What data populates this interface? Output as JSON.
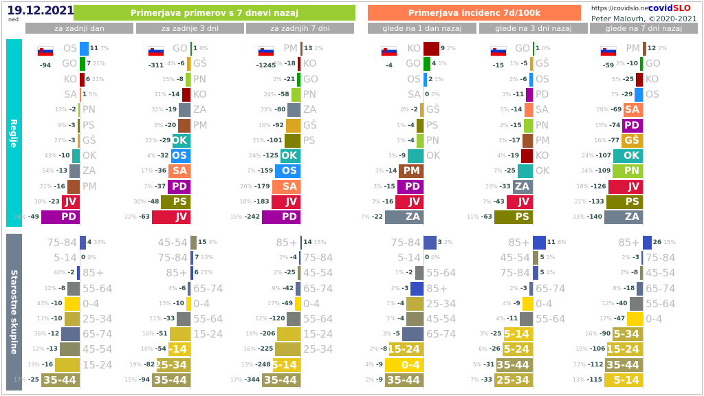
{
  "header": {
    "date": "19.12.2021",
    "weekday": "ned",
    "left_title": "Primerjava primerov s 7 dnevi nazaj",
    "right_title": "Primerjava incidenc 7d/100k",
    "left_subs": [
      "za zadnji dan",
      "za zadnje 3 dni",
      "za zadnjih 7 dni"
    ],
    "right_subs": [
      "glede na 1 dan nazaj",
      "glede na 3 dni nazaj",
      "glede na 7 dni nazaj"
    ],
    "url": "https://covidslo.net",
    "brand_a": "covid",
    "brand_b": "SLO",
    "author": "Peter Malovrh, ©2020-2021",
    "left_color": "#9acd32",
    "right_color": "#ff7f50"
  },
  "chart_data": [
    {
      "type": "bar",
      "title": "Regije",
      "orientation": "horizontal",
      "colors": {
        "OS": "#1e90ff",
        "GO": "#00a000",
        "KO": "#a00000",
        "SA": "#ff7f50",
        "PN": "#9acd32",
        "PS": "#808000",
        "GŠ": "#daa520",
        "OK": "#20b2aa",
        "ZA": "#708090",
        "PM": "#a0522d",
        "JV": "#dc143c",
        "PD": "#a000a0"
      },
      "section_color": "#00ced1",
      "panels": [
        {
          "total": "-94",
          "items": [
            [
              "OS",
              11,
              "7%"
            ],
            [
              "GO",
              7,
              "21%"
            ],
            [
              "KO",
              6,
              "21%"
            ],
            [
              "SA",
              1,
              "5%"
            ],
            [
              "PN",
              -2,
              "13%"
            ],
            [
              "PS",
              -3,
              "9%"
            ],
            [
              "GŠ",
              -3,
              "27%"
            ],
            [
              "OK",
              -10,
              "43%"
            ],
            [
              "ZA",
              -13,
              "54%"
            ],
            [
              "PM",
              -16,
              "22%"
            ],
            [
              "JV",
              -23,
              "38%"
            ],
            [
              "PD",
              -49,
              "26%"
            ]
          ]
        },
        {
          "total": "-311",
          "items": [
            [
              "GO",
              1,
              "0%"
            ],
            [
              "GŠ",
              -6,
              "4%"
            ],
            [
              "PN",
              -8,
              "15%"
            ],
            [
              "KO",
              -14,
              "11%"
            ],
            [
              "ZA",
              -19,
              "32%"
            ],
            [
              "PM",
              -20,
              "8%"
            ],
            [
              "OK",
              -29,
              "22%"
            ],
            [
              "OS",
              -32,
              "4%"
            ],
            [
              "SA",
              -36,
              "17%"
            ],
            [
              "PD",
              -37,
              "7%"
            ],
            [
              "PS",
              -48,
              "30%"
            ],
            [
              "JV",
              -63,
              "22%"
            ]
          ]
        },
        {
          "total": "-1245",
          "items": [
            [
              "PM",
              13,
              "2%"
            ],
            [
              "KO",
              -18,
              "5%"
            ],
            [
              "GO",
              -21,
              "2%"
            ],
            [
              "PN",
              -58,
              "24%"
            ],
            [
              "ZA",
              -80,
              "33%"
            ],
            [
              "GŠ",
              -92,
              "16%"
            ],
            [
              "PS",
              -101,
              "21%"
            ],
            [
              "OK",
              -125,
              "24%"
            ],
            [
              "OS",
              -159,
              "7%"
            ],
            [
              "SA",
              -179,
              "20%"
            ],
            [
              "JV",
              -183,
              "18%"
            ],
            [
              "PD",
              -242,
              "15%"
            ]
          ]
        },
        {
          "total": "-4",
          "items": [
            [
              "KO",
              9,
              "2%"
            ],
            [
              "GO",
              4,
              "1%"
            ],
            [
              "OS",
              2,
              "1%"
            ],
            [
              "SA",
              0,
              "0%"
            ],
            [
              "GŠ",
              -2,
              "0%"
            ],
            [
              "PS",
              -4,
              "1%"
            ],
            [
              "PN",
              -4,
              "1%"
            ],
            [
              "OK",
              -9,
              "3%"
            ],
            [
              "PM",
              -14,
              "3%"
            ],
            [
              "PD",
              -15,
              "3%"
            ],
            [
              "JV",
              -16,
              "3%"
            ],
            [
              "ZA",
              -22,
              "7%"
            ]
          ]
        },
        {
          "total": "-15",
          "items": [
            [
              "GO",
              1,
              "0%"
            ],
            [
              "GŠ",
              -5,
              "1%"
            ],
            [
              "OS",
              -6,
              "2%"
            ],
            [
              "PD",
              -11,
              "3%"
            ],
            [
              "SA",
              -14,
              "5%"
            ],
            [
              "PN",
              -15,
              "4%"
            ],
            [
              "PM",
              -17,
              "3%"
            ],
            [
              "KO",
              -19,
              "4%"
            ],
            [
              "OK",
              -25,
              "7%"
            ],
            [
              "ZA",
              -33,
              "10%"
            ],
            [
              "JV",
              -43,
              "7%"
            ],
            [
              "PS",
              -63,
              "11%"
            ]
          ]
        },
        {
          "total": "-59",
          "items": [
            [
              "PM",
              12,
              "2%"
            ],
            [
              "GO",
              -10,
              "2%"
            ],
            [
              "KO",
              -25,
              "5%"
            ],
            [
              "OS",
              -29,
              "7%"
            ],
            [
              "SA",
              -69,
              "20%"
            ],
            [
              "PD",
              -74,
              "15%"
            ],
            [
              "GŠ",
              -77,
              "16%"
            ],
            [
              "OK",
              -107,
              "24%"
            ],
            [
              "PN",
              -109,
              "24%"
            ],
            [
              "JV",
              -126,
              "18%"
            ],
            [
              "PS",
              -133,
              "21%"
            ],
            [
              "ZA",
              -140,
              "33%"
            ]
          ]
        }
      ]
    },
    {
      "type": "bar",
      "title": "Starostne skupine",
      "orientation": "horizontal",
      "colors": {
        "0-4": "#ffd700",
        "5-14": "#e8c81e",
        "15-24": "#d4bc2c",
        "25-34": "#bfae3e",
        "35-44": "#a39c58",
        "45-54": "#8c8a62",
        "55-64": "#7a7e7a",
        "65-74": "#5f6f92",
        "75-84": "#4a5cb0",
        "85+": "#3550c4"
      },
      "section_color": "#708090",
      "panels": [
        {
          "items": [
            [
              "75-84",
              4,
              "33%"
            ],
            [
              "5-14",
              0,
              "0%"
            ],
            [
              "85+",
              -2,
              "40%"
            ],
            [
              "55-64",
              -8,
              "12%"
            ],
            [
              "0-4",
              -10,
              "43%"
            ],
            [
              "25-34",
              -10,
              "11%"
            ],
            [
              "65-74",
              -12,
              "36%"
            ],
            [
              "45-54",
              -13,
              "12%"
            ],
            [
              "15-24",
              -16,
              "19%"
            ],
            [
              "35-44",
              -25,
              "17%"
            ]
          ]
        },
        {
          "items": [
            [
              "45-54",
              15,
              "4%"
            ],
            [
              "75-84",
              7,
              "13%"
            ],
            [
              "85+",
              6,
              "23%"
            ],
            [
              "65-74",
              -6,
              "4%"
            ],
            [
              "0-4",
              -10,
              "13%"
            ],
            [
              "55-64",
              -33,
              "11%"
            ],
            [
              "15-24",
              -51,
              "16%"
            ],
            [
              "5-14",
              -54,
              "10%"
            ],
            [
              "25-34",
              -82,
              "19%"
            ],
            [
              "35-44",
              -94,
              "15%"
            ]
          ]
        },
        {
          "items": [
            [
              "85+",
              14,
              "15%"
            ],
            [
              "75-84",
              -4,
              "2%"
            ],
            [
              "45-54",
              -25,
              "2%"
            ],
            [
              "65-74",
              -42,
              "9%"
            ],
            [
              "0-4",
              -49,
              "17%"
            ],
            [
              "55-64",
              -120,
              "12%"
            ],
            [
              "15-24",
              -206,
              "19%"
            ],
            [
              "25-34",
              -225,
              "16%"
            ],
            [
              "5-14",
              -248,
              "13%"
            ],
            [
              "35-44",
              -344,
              "17%"
            ]
          ]
        },
        {
          "items": [
            [
              "75-84",
              3,
              "2%"
            ],
            [
              "5-14",
              0,
              "0%"
            ],
            [
              "55-64",
              -2,
              "1%"
            ],
            [
              "85+",
              -3,
              "2%"
            ],
            [
              "25-34",
              -4,
              "1%"
            ],
            [
              "45-54",
              -4,
              "1%"
            ],
            [
              "65-74",
              -5,
              "3%"
            ],
            [
              "15-24",
              -8,
              "2%"
            ],
            [
              "0-4",
              -9,
              "4%"
            ],
            [
              "35-44",
              -9,
              "2%"
            ]
          ]
        },
        {
          "items": [
            [
              "85+",
              11,
              "6%"
            ],
            [
              "45-54",
              5,
              "1%"
            ],
            [
              "75-84",
              5,
              "4%"
            ],
            [
              "65-74",
              -3,
              "2%"
            ],
            [
              "0-4",
              -9,
              "4%"
            ],
            [
              "55-64",
              -11,
              "4%"
            ],
            [
              "5-14",
              -25,
              "3%"
            ],
            [
              "15-24",
              -26,
              "6%"
            ],
            [
              "35-44",
              -31,
              "5%"
            ],
            [
              "25-34",
              -33,
              "7%"
            ]
          ]
        },
        {
          "items": [
            [
              "85+",
              26,
              "15%"
            ],
            [
              "75-84",
              -3,
              "2%"
            ],
            [
              "45-54",
              -8,
              "2%"
            ],
            [
              "65-74",
              -18,
              "8%"
            ],
            [
              "55-64",
              -40,
              "12%"
            ],
            [
              "0-4",
              -47,
              "17%"
            ],
            [
              "25-34",
              -90,
              "16%"
            ],
            [
              "15-24",
              -106,
              "19%"
            ],
            [
              "35-44",
              -112,
              "17%"
            ],
            [
              "5-14",
              -115,
              "13%"
            ]
          ]
        }
      ]
    }
  ]
}
